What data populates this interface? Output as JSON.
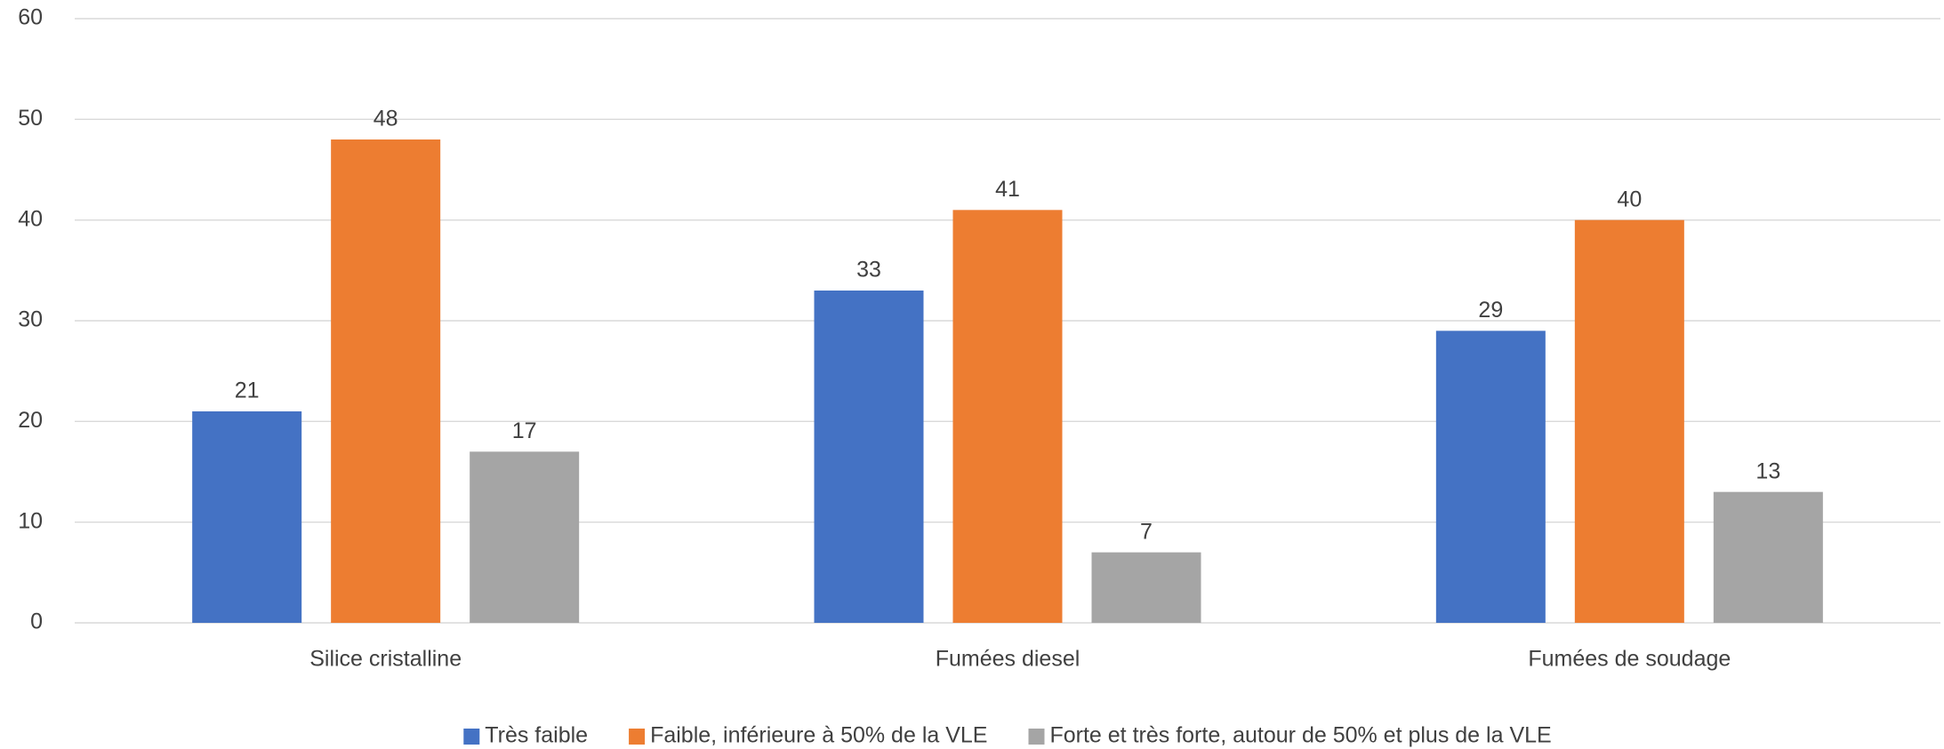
{
  "chart_data": {
    "type": "bar",
    "categories": [
      "Silice cristalline",
      "Fumées diesel",
      "Fumées de soudage"
    ],
    "series": [
      {
        "name": "Très faible",
        "color": "#4472c4",
        "values": [
          21,
          33,
          29
        ]
      },
      {
        "name": "Faible, inférieure à 50% de la VLE",
        "color": "#ed7d31",
        "values": [
          48,
          41,
          40
        ]
      },
      {
        "name": "Forte et très forte, autour de 50% et plus de la VLE",
        "color": "#a5a5a5",
        "values": [
          17,
          7,
          13
        ]
      }
    ],
    "ylim": [
      0,
      60
    ],
    "yticks": [
      0,
      10,
      20,
      30,
      40,
      50,
      60
    ],
    "grid": true,
    "legend": "bottom"
  }
}
